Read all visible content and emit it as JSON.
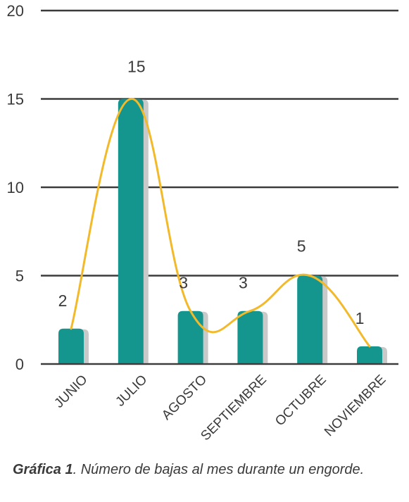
{
  "chart_data": {
    "type": "bar",
    "categories": [
      "JUNIO",
      "JULIO",
      "AGOSTO",
      "SEPTIEMBRE",
      "OCTUBRE",
      "NOVIEMBRE"
    ],
    "values": [
      2,
      15,
      3,
      3,
      5,
      1
    ],
    "ylim": [
      0,
      20
    ],
    "yticks": [
      0,
      5,
      10,
      15,
      20
    ],
    "grid": true,
    "data_labels": [
      "2",
      "15",
      "3",
      "3",
      "5",
      "1"
    ],
    "trend_line": "smoothed",
    "colors": {
      "bar": "#14968f",
      "bar_shadow": "#c9c9c9",
      "trend_line": "#f2b92a",
      "grid": "#3b3b3b",
      "text": "#3a3a3a"
    }
  },
  "caption": {
    "lead": "Gráfica 1",
    "text": ". Número de bajas al mes durante un engorde."
  }
}
